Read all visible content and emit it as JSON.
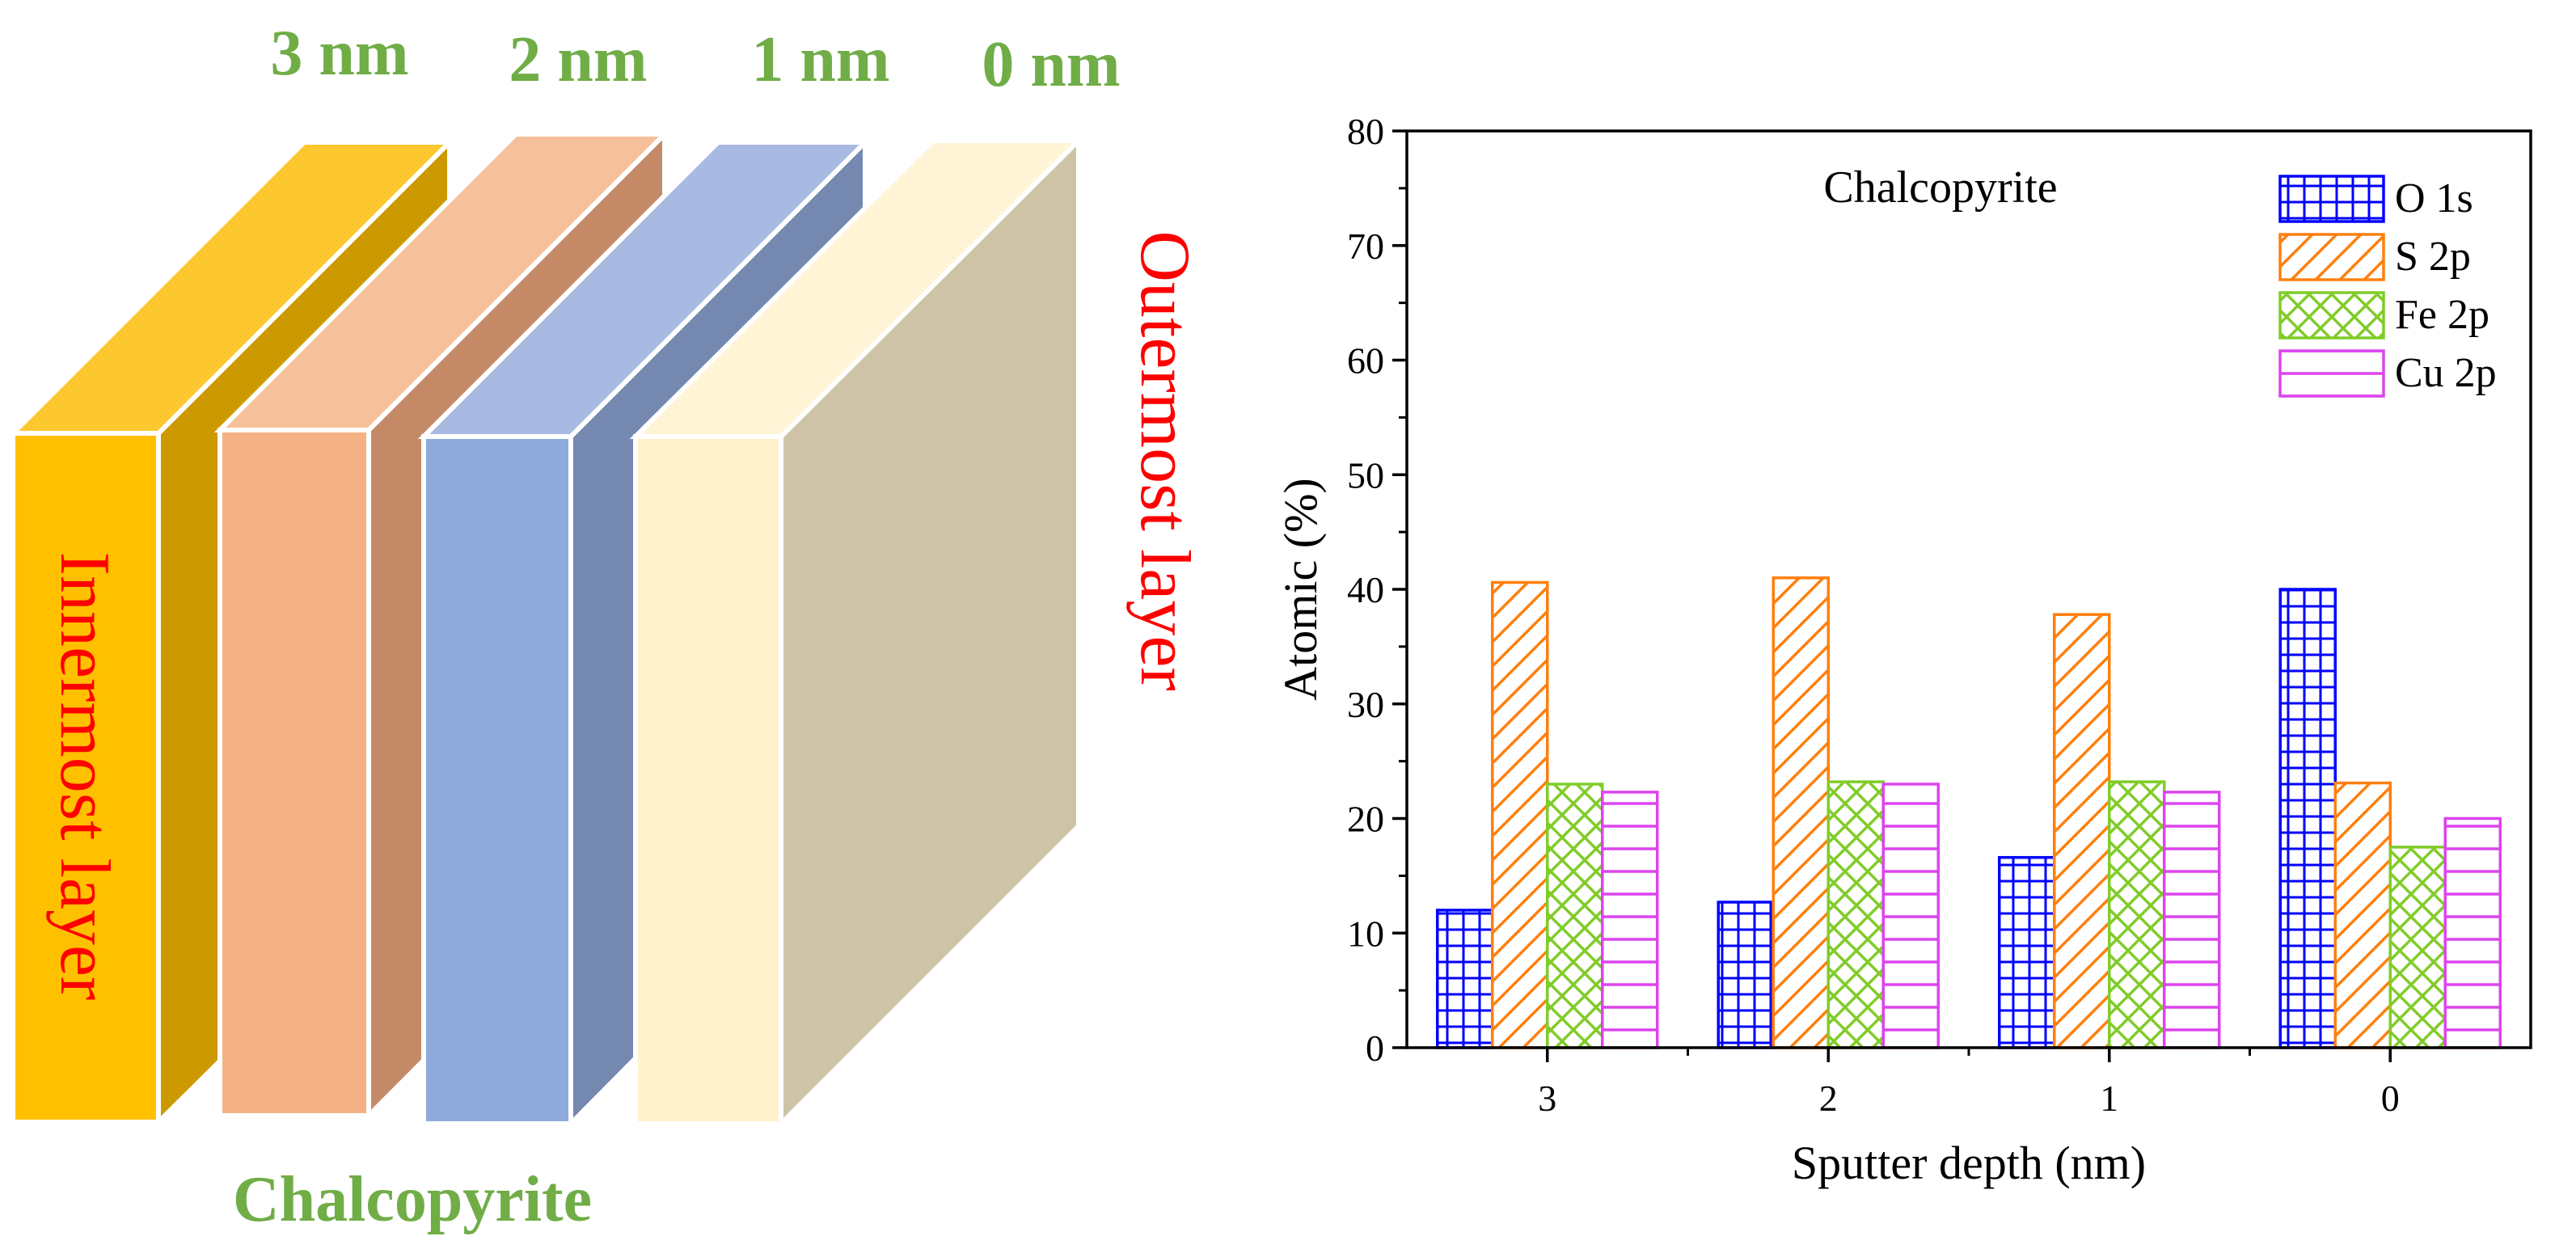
{
  "diagram": {
    "depth_labels": [
      "3 nm",
      "2 nm",
      "1 nm",
      "0 nm"
    ],
    "inner_label": "Innermost layer",
    "outer_label": "Outermost layer",
    "bottom_label": "Chalcopyrite",
    "colors": {
      "green_text": "#70ad47",
      "red_text": "#ff0000",
      "layer1": [
        "#fdc82f",
        "#ffc000",
        "#cc9900"
      ],
      "layer2": [
        "#f6c09a",
        "#f4b183",
        "#c48a68"
      ],
      "layer3": [
        "#a8b9e2",
        "#8faadc",
        "#7588b0"
      ],
      "layer4": [
        "#fff4d6",
        "#fff2cc",
        "#cec3a6"
      ]
    }
  },
  "chart_data": {
    "type": "bar",
    "title": "Chalcopyrite",
    "xlabel": "Sputter depth (nm)",
    "ylabel": "Atomic (%)",
    "ylim": [
      0,
      80
    ],
    "yticks": [
      0,
      10,
      20,
      30,
      40,
      50,
      60,
      70,
      80
    ],
    "categories": [
      "3",
      "2",
      "1",
      "0"
    ],
    "series": [
      {
        "name": "O 1s",
        "values": [
          12.0,
          12.7,
          16.6,
          40.0
        ],
        "color": "#0000ff",
        "pattern": "grid"
      },
      {
        "name": "S 2p",
        "values": [
          40.6,
          41.0,
          37.8,
          23.1
        ],
        "color": "#ff7f0e",
        "pattern": "diagonal"
      },
      {
        "name": "Fe 2p",
        "values": [
          23.0,
          23.2,
          23.2,
          17.5
        ],
        "color": "#80cc28",
        "pattern": "crosshatch"
      },
      {
        "name": "Cu 2p",
        "values": [
          22.3,
          23.0,
          22.3,
          20.0
        ],
        "color": "#dd44ee",
        "pattern": "horizontal"
      }
    ],
    "legend_position": "top-right"
  }
}
